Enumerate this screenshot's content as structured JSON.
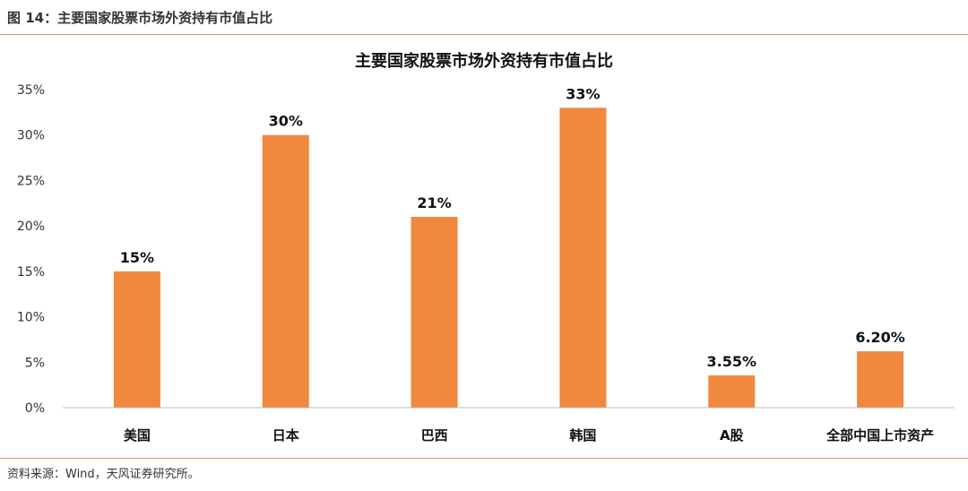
{
  "figure": {
    "caption": "图 14：主要国家股票市场外资持有市值占比",
    "source": "资料来源：Wind，天风证券研究所。"
  },
  "colors": {
    "bar": "#f0883e",
    "accent_rule": "#e0945a",
    "axis": "#bfbfbf"
  },
  "chart_data": {
    "type": "bar",
    "title": "主要国家股票市场外资持有市值占比",
    "xlabel": "",
    "ylabel": "",
    "categories": [
      "美国",
      "日本",
      "巴西",
      "韩国",
      "A股",
      "全部中国上市资产"
    ],
    "values": [
      15,
      30,
      21,
      33,
      3.55,
      6.2
    ],
    "data_labels": [
      "15%",
      "30%",
      "21%",
      "33%",
      "3.55%",
      "6.20%"
    ],
    "ylim": [
      0,
      35
    ],
    "yticks": [
      0,
      5,
      10,
      15,
      20,
      25,
      30,
      35
    ],
    "ytick_labels": [
      "0%",
      "5%",
      "10%",
      "15%",
      "20%",
      "25%",
      "30%",
      "35%"
    ],
    "grid": false,
    "legend": "none"
  }
}
